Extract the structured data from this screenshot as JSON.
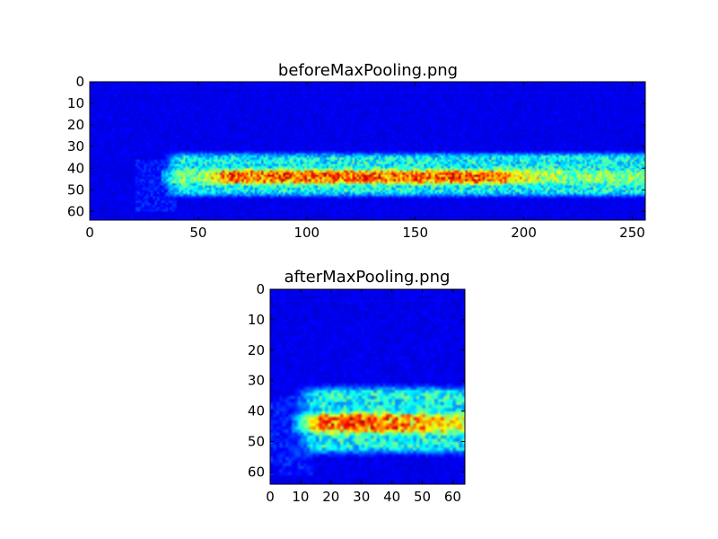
{
  "chart_data": [
    {
      "type": "heatmap",
      "title": "beforeMaxPooling.png",
      "xlabel": "",
      "ylabel": "",
      "xlim": [
        0,
        256
      ],
      "ylim": [
        64,
        0
      ],
      "y_inverted": true,
      "colormap": "jet",
      "xticks": [
        0,
        50,
        100,
        150,
        200,
        250
      ],
      "xtick_labels": [
        "0",
        "50",
        "100",
        "150",
        "200",
        "250"
      ],
      "yticks": [
        0,
        10,
        20,
        30,
        40,
        50,
        60
      ],
      "ytick_labels": [
        "0",
        "10",
        "20",
        "30",
        "40",
        "50",
        "60"
      ],
      "intensity_notes": {
        "background": "low (dark blue) everywhere outside the band",
        "band_rows": [
          33,
          52
        ],
        "band_cols": [
          35,
          256
        ],
        "hot_rows": [
          41,
          46
        ],
        "hot_cols": [
          60,
          180
        ],
        "peak_level": 0.95
      }
    },
    {
      "type": "heatmap",
      "title": "afterMaxPooling.png",
      "xlabel": "",
      "ylabel": "",
      "xlim": [
        0,
        64
      ],
      "ylim": [
        64,
        0
      ],
      "y_inverted": true,
      "colormap": "jet",
      "xticks": [
        0,
        10,
        20,
        30,
        40,
        50,
        60
      ],
      "xtick_labels": [
        "0",
        "10",
        "20",
        "30",
        "40",
        "50",
        "60"
      ],
      "yticks": [
        0,
        10,
        20,
        30,
        40,
        50,
        60
      ],
      "ytick_labels": [
        "0",
        "10",
        "20",
        "30",
        "40",
        "50",
        "60"
      ],
      "intensity_notes": {
        "background": "low (dark blue) everywhere outside the band",
        "band_rows": [
          32,
          53
        ],
        "band_cols": [
          9,
          64
        ],
        "hot_rows": [
          41,
          46
        ],
        "hot_cols": [
          15,
          40
        ],
        "peak_level": 0.97
      }
    }
  ]
}
